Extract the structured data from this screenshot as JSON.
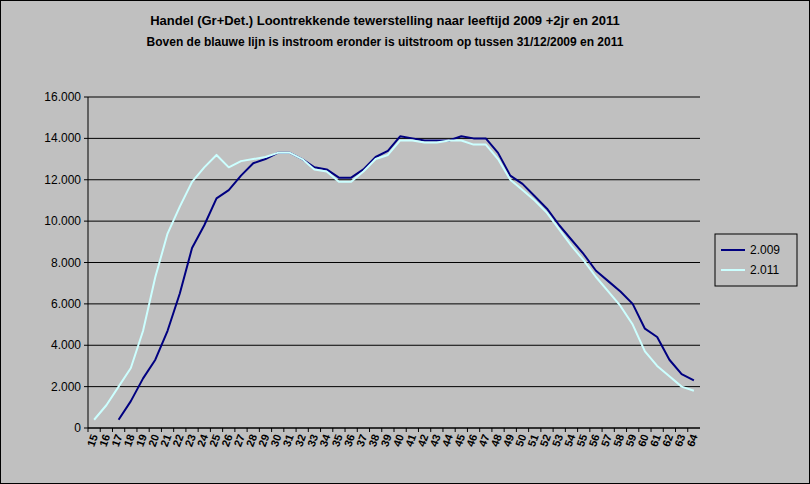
{
  "chart_data": {
    "type": "line",
    "title": "Handel (Gr+Det.) Loontrekkende tewerstelling naar leeftijd 2009 +2jr en 2011",
    "subtitle": "Boven de blauwe lijn is instroom eronder is uitstroom op tussen 31/12/2009 en 2011",
    "categories": [
      "15",
      "16",
      "17",
      "18",
      "19",
      "20",
      "21",
      "22",
      "23",
      "24",
      "25",
      "26",
      "27",
      "28",
      "29",
      "30",
      "31",
      "32",
      "33",
      "34",
      "35",
      "36",
      "37",
      "38",
      "39",
      "40",
      "41",
      "42",
      "43",
      "44",
      "45",
      "46",
      "47",
      "48",
      "49",
      "50",
      "51",
      "52",
      "53",
      "54",
      "55",
      "56",
      "57",
      "58",
      "59",
      "60",
      "61",
      "62",
      "63",
      "64"
    ],
    "series": [
      {
        "name": "2.009",
        "color": "#000080",
        "values": [
          null,
          null,
          400,
          1300,
          2400,
          3300,
          4700,
          6500,
          8700,
          9800,
          11100,
          11500,
          12200,
          12800,
          13000,
          13300,
          13300,
          13000,
          12600,
          12500,
          12100,
          12100,
          12500,
          13100,
          13400,
          14100,
          14000,
          13900,
          13900,
          13900,
          14100,
          14000,
          14000,
          13300,
          12200,
          11800,
          11200,
          10600,
          9800,
          9100,
          8400,
          7600,
          7100,
          6600,
          6000,
          4800,
          4400,
          3300,
          2600,
          2300
        ]
      },
      {
        "name": "2.011",
        "color": "#ccffff",
        "values": [
          400,
          1100,
          2000,
          2900,
          4700,
          7300,
          9400,
          10700,
          11900,
          12600,
          13200,
          12600,
          12900,
          13000,
          13100,
          13300,
          13300,
          13000,
          12500,
          12400,
          11900,
          11900,
          12400,
          13000,
          13200,
          13900,
          13900,
          13800,
          13800,
          13900,
          13900,
          13700,
          13700,
          13000,
          12000,
          11500,
          11000,
          10400,
          9600,
          8800,
          8100,
          7300,
          6600,
          5900,
          5000,
          3700,
          3000,
          2500,
          2000,
          1800
        ]
      }
    ],
    "ylim": [
      0,
      16000
    ],
    "yticks": [
      0,
      {
        "value": 2000,
        "label": "2.000"
      },
      {
        "value": 4000,
        "label": "4.000"
      },
      {
        "value": 6000,
        "label": "6.000"
      },
      {
        "value": 8000,
        "label": "8.000"
      },
      {
        "value": 10000,
        "label": "10.000"
      },
      {
        "value": 12000,
        "label": "12.000"
      },
      {
        "value": 14000,
        "label": "14.000"
      },
      {
        "value": 16000,
        "label": "16.000"
      }
    ],
    "grid": true,
    "legend": "right"
  }
}
